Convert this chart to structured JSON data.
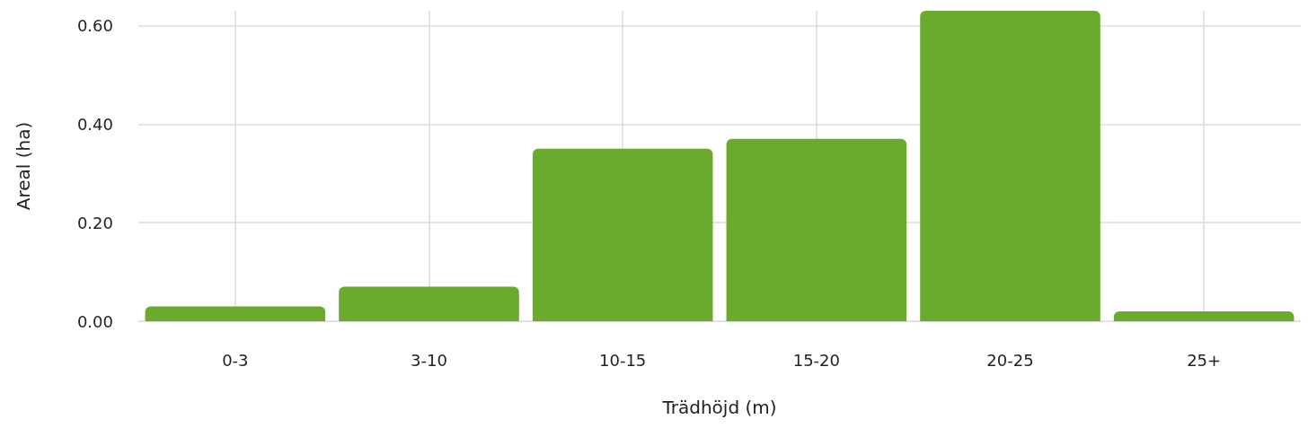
{
  "chart_data": {
    "type": "bar",
    "xlabel": "Trädhöjd (m)",
    "ylabel": "Areal (ha)",
    "categories": [
      "0-3",
      "3-10",
      "10-15",
      "15-20",
      "20-25",
      "25+"
    ],
    "values": [
      0.03,
      0.07,
      0.35,
      0.37,
      0.63,
      0.02
    ],
    "color": "#6aab2e",
    "ylim": [
      0,
      0.63
    ],
    "yticks": [
      {
        "value": 0,
        "label": "0.00"
      },
      {
        "value": 0.2,
        "label": "0.20"
      },
      {
        "value": 0.4,
        "label": "0.40"
      },
      {
        "value": 0.6,
        "label": "0.60"
      }
    ],
    "grid": true
  }
}
